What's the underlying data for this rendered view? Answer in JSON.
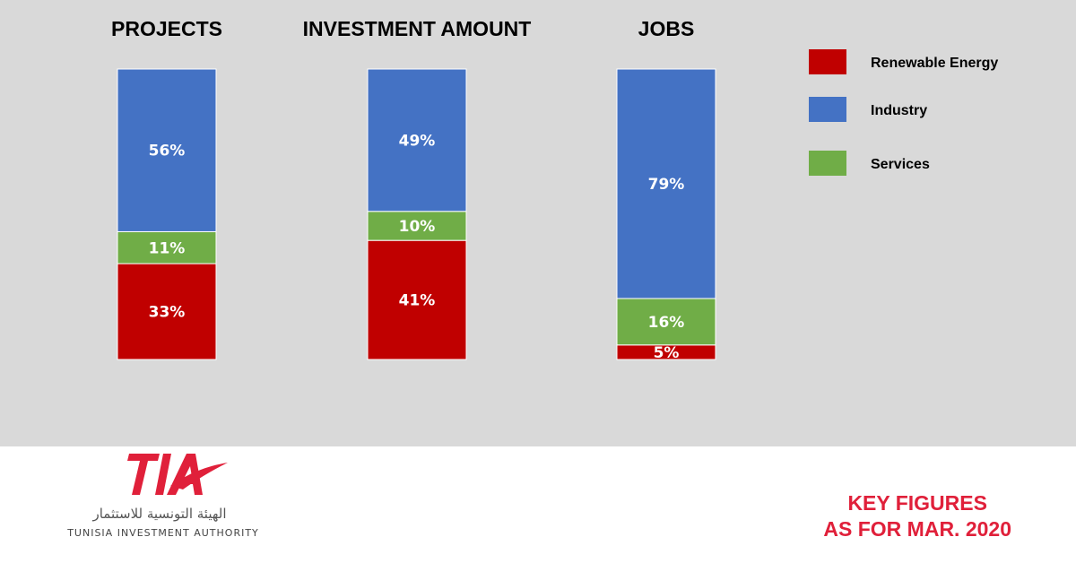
{
  "colors": {
    "background": "#d9d9d9",
    "renewable": "#c00000",
    "industry": "#4472c4",
    "services": "#70ad47",
    "accent": "#e0203a"
  },
  "chart_data": {
    "type": "bar",
    "stacked": true,
    "unit": "%",
    "categories": [
      "PROJECTS",
      "INVESTMENT AMOUNT",
      "JOBS"
    ],
    "series": [
      {
        "name": "Renewable Energy",
        "values": [
          33,
          41,
          5
        ],
        "color": "#c00000"
      },
      {
        "name": "Services",
        "values": [
          11,
          10,
          16
        ],
        "color": "#70ad47"
      },
      {
        "name": "Industry",
        "values": [
          56,
          49,
          79
        ],
        "color": "#4472c4"
      }
    ],
    "ylim": [
      0,
      100
    ],
    "legend": {
      "placement": "top-right",
      "entries": [
        "Renewable Energy",
        "Industry",
        "Services"
      ]
    },
    "grid": false
  },
  "logo": {
    "mark": "TIA",
    "arabic": "الهيئة التونسية للاستثمار",
    "english": "TUNISIA INVESTMENT AUTHORITY"
  },
  "footer": {
    "line1": "KEY FIGURES",
    "line2": "AS FOR MAR. 2020"
  }
}
